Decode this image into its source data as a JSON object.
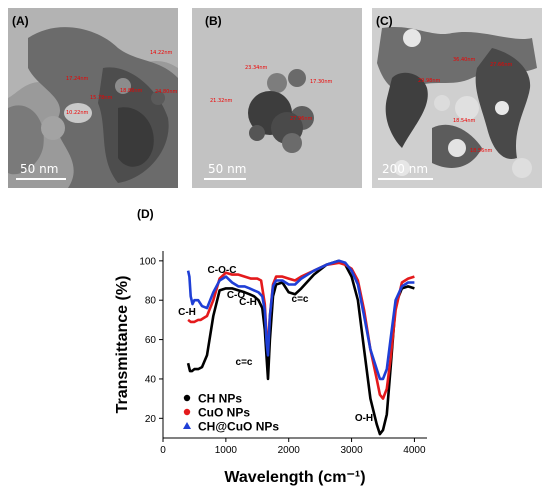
{
  "figure": {
    "panels": [
      {
        "tag": "(A)",
        "scale_bar": "50 nm",
        "measurements": [
          "14.22nm",
          "17.24nm",
          "15.78nm",
          "18.86nm",
          "24.80nm",
          "10.22nm"
        ]
      },
      {
        "tag": "(B)",
        "scale_bar": "50 nm",
        "measurements": [
          "23.34nm",
          "17.30nm",
          "21.32nm",
          "27.96nm"
        ]
      },
      {
        "tag": "(C)",
        "scale_bar": "200 nm",
        "measurements": [
          "36.40nm",
          "27.66nm",
          "29.98nm",
          "18.54nm",
          "18.56nm"
        ]
      }
    ],
    "panel_d_tag": "(D)"
  },
  "chart_data": {
    "type": "line",
    "xlabel": "Wavelength (cm⁻¹)",
    "ylabel": "Transmittance (%)",
    "xlim": [
      0,
      4200
    ],
    "ylim": [
      10,
      105
    ],
    "xticks": [
      0,
      1000,
      2000,
      3000,
      4000
    ],
    "yticks": [
      20,
      40,
      60,
      80,
      100
    ],
    "grid": false,
    "legend_position": "bottom-left",
    "series": [
      {
        "name": "CH NPs",
        "color": "#000000",
        "x": [
          400,
          430,
          460,
          500,
          560,
          620,
          700,
          800,
          900,
          1000,
          1100,
          1200,
          1300,
          1380,
          1450,
          1520,
          1580,
          1620,
          1650,
          1670,
          1700,
          1750,
          1800,
          1900,
          2000,
          2100,
          2200,
          2400,
          2600,
          2800,
          2900,
          3000,
          3100,
          3200,
          3300,
          3400,
          3450,
          3500,
          3560,
          3620,
          3700,
          3800,
          3900,
          4000
        ],
        "y": [
          48,
          44,
          44,
          45,
          45,
          46,
          52,
          72,
          85,
          86,
          86,
          85,
          84,
          83,
          82,
          80,
          76,
          65,
          50,
          40,
          60,
          82,
          88,
          89,
          84,
          83,
          86,
          93,
          98,
          100,
          98,
          92,
          80,
          55,
          30,
          17,
          12,
          14,
          22,
          45,
          78,
          86,
          87,
          86
        ]
      },
      {
        "name": "CuO NPs",
        "color": "#e41a1c",
        "x": [
          400,
          440,
          500,
          560,
          600,
          650,
          700,
          800,
          900,
          1000,
          1100,
          1200,
          1300,
          1400,
          1500,
          1560,
          1620,
          1650,
          1670,
          1700,
          1750,
          1800,
          1900,
          2000,
          2100,
          2200,
          2400,
          2600,
          2800,
          2900,
          3000,
          3100,
          3200,
          3300,
          3400,
          3450,
          3500,
          3560,
          3620,
          3700,
          3800,
          3900,
          4000
        ],
        "y": [
          70,
          69,
          69,
          70,
          70,
          71,
          72,
          80,
          91,
          94,
          93,
          93,
          92,
          91,
          91,
          90,
          78,
          60,
          57,
          72,
          88,
          92,
          92,
          91,
          90,
          92,
          95,
          98,
          99,
          98,
          96,
          90,
          75,
          55,
          40,
          32,
          30,
          35,
          50,
          75,
          89,
          91,
          92
        ]
      },
      {
        "name": "CH@CuO NPs",
        "color": "#1f3fd6",
        "x": [
          400,
          420,
          440,
          470,
          500,
          560,
          620,
          700,
          800,
          900,
          1000,
          1100,
          1200,
          1300,
          1380,
          1450,
          1520,
          1580,
          1620,
          1650,
          1670,
          1700,
          1750,
          1800,
          1900,
          2000,
          2100,
          2200,
          2400,
          2600,
          2800,
          2900,
          3000,
          3100,
          3200,
          3300,
          3400,
          3450,
          3500,
          3560,
          3620,
          3700,
          3800,
          3900,
          4000
        ],
        "y": [
          95,
          92,
          82,
          78,
          80,
          80,
          77,
          76,
          84,
          90,
          92,
          89,
          87,
          87,
          86,
          85,
          84,
          82,
          75,
          58,
          52,
          72,
          87,
          90,
          90,
          88,
          88,
          91,
          95,
          98,
          100,
          99,
          95,
          88,
          72,
          55,
          45,
          40,
          40,
          45,
          60,
          80,
          87,
          89,
          89
        ]
      }
    ],
    "annotations": [
      "C-O-C",
      "C-H",
      "C-O",
      "C-H",
      "c=c",
      "c=c",
      "O-H"
    ]
  }
}
